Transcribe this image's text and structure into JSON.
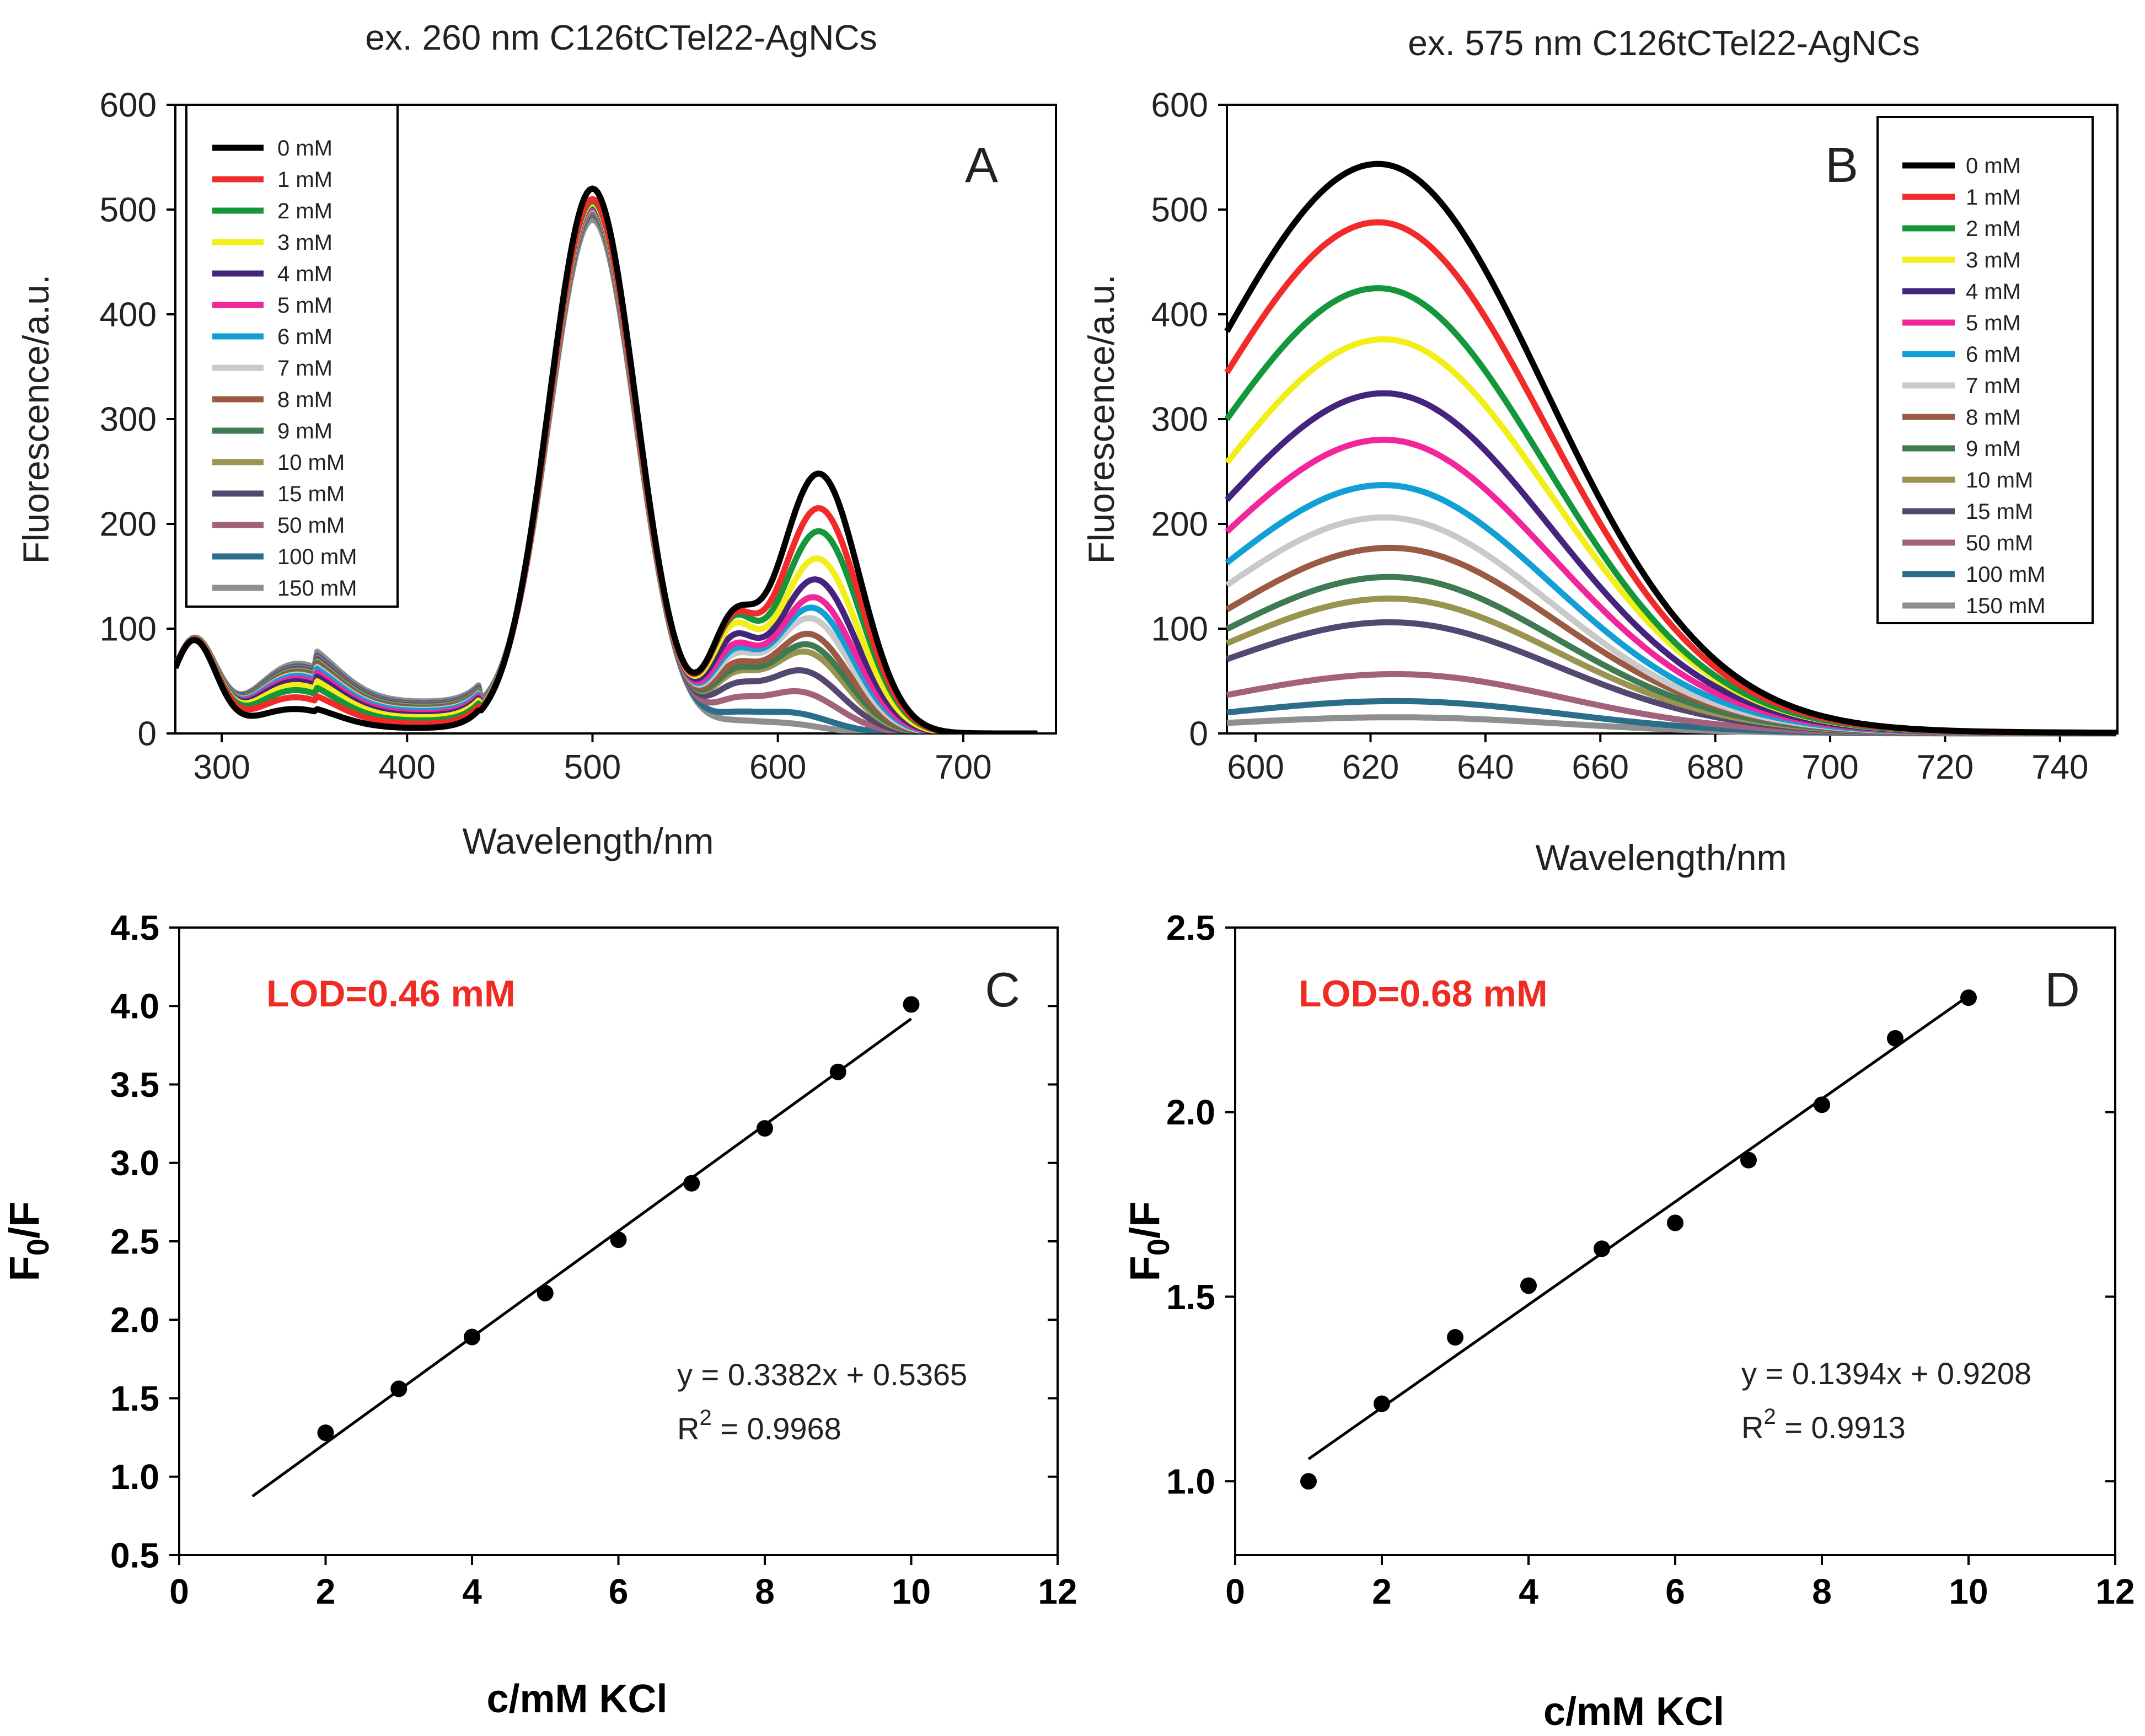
{
  "colors": {
    "series": [
      "#000000",
      "#f22a2a",
      "#14963a",
      "#f2ee17",
      "#45247d",
      "#f2269a",
      "#129fd6",
      "#c9c9c9",
      "#9a5a43",
      "#3e7a52",
      "#9a9450",
      "#544870",
      "#a2627a",
      "#2b6e8a",
      "#8f8f8f"
    ],
    "annotation": "#ee2c24"
  },
  "chart_data": [
    {
      "id": "A",
      "type": "line",
      "title": "ex. 260 nm C126tCTel22-AgNCs",
      "panel_label": "A",
      "xlabel": "Wavelength/nm",
      "ylabel": "Fluorescence/a.u.",
      "xlim": [
        275,
        750
      ],
      "ylim": [
        0,
        600
      ],
      "xticks": [
        300,
        400,
        500,
        600,
        700
      ],
      "yticks": [
        0,
        100,
        200,
        300,
        400,
        500,
        600
      ],
      "legend_position": "top-left",
      "series": [
        {
          "name": "0 mM",
          "peak1": 520,
          "peak2": 248,
          "peak2_center": 622,
          "shoulder": 22,
          "min_plateau": 5
        },
        {
          "name": "1 mM",
          "peak1": 510,
          "peak2": 215,
          "peak2_center": 622,
          "shoulder": 32,
          "min_plateau": 9
        },
        {
          "name": "2 mM",
          "peak1": 508,
          "peak2": 193,
          "peak2_center": 622,
          "shoulder": 38,
          "min_plateau": 12
        },
        {
          "name": "3 mM",
          "peak1": 506,
          "peak2": 167,
          "peak2_center": 621,
          "shoulder": 42,
          "min_plateau": 15
        },
        {
          "name": "4 mM",
          "peak1": 505,
          "peak2": 147,
          "peak2_center": 620,
          "shoulder": 45,
          "min_plateau": 17
        },
        {
          "name": "5 mM",
          "peak1": 503,
          "peak2": 130,
          "peak2_center": 619,
          "shoulder": 47,
          "min_plateau": 19
        },
        {
          "name": "6 mM",
          "peak1": 502,
          "peak2": 120,
          "peak2_center": 618,
          "shoulder": 49,
          "min_plateau": 21
        },
        {
          "name": "7 mM",
          "peak1": 501,
          "peak2": 110,
          "peak2_center": 617,
          "shoulder": 50,
          "min_plateau": 22
        },
        {
          "name": "8 mM",
          "peak1": 500,
          "peak2": 95,
          "peak2_center": 616,
          "shoulder": 51,
          "min_plateau": 23
        },
        {
          "name": "9 mM",
          "peak1": 499,
          "peak2": 85,
          "peak2_center": 615,
          "shoulder": 52,
          "min_plateau": 24
        },
        {
          "name": "10 mM",
          "peak1": 498,
          "peak2": 78,
          "peak2_center": 614,
          "shoulder": 53,
          "min_plateau": 25
        },
        {
          "name": "15 mM",
          "peak1": 497,
          "peak2": 60,
          "peak2_center": 612,
          "shoulder": 54,
          "min_plateau": 26
        },
        {
          "name": "50 mM",
          "peak1": 496,
          "peak2": 40,
          "peak2_center": 610,
          "shoulder": 55,
          "min_plateau": 27
        },
        {
          "name": "100 mM",
          "peak1": 495,
          "peak2": 20,
          "peak2_center": 605,
          "shoulder": 56,
          "min_plateau": 28
        },
        {
          "name": "150 mM",
          "peak1": 490,
          "peak2": 10,
          "peak2_center": 600,
          "shoulder": 58,
          "min_plateau": 30
        }
      ]
    },
    {
      "id": "B",
      "type": "line",
      "title": "ex. 575 nm C126tCTel22-AgNCs",
      "panel_label": "B",
      "xlabel": "Wavelength/nm",
      "ylabel": "Fluorescence/a.u.",
      "xlim": [
        595,
        750
      ],
      "ylim": [
        0,
        600
      ],
      "xticks": [
        600,
        620,
        640,
        660,
        680,
        700,
        720,
        740
      ],
      "yticks": [
        0,
        100,
        200,
        300,
        400,
        500,
        600
      ],
      "legend_position": "top-right",
      "series": [
        {
          "name": "0 mM",
          "peak": 527,
          "center": 622
        },
        {
          "name": "1 mM",
          "peak": 473,
          "center": 622
        },
        {
          "name": "2 mM",
          "peak": 412,
          "center": 622
        },
        {
          "name": "3 mM",
          "peak": 365,
          "center": 623
        },
        {
          "name": "4 mM",
          "peak": 315,
          "center": 623
        },
        {
          "name": "5 mM",
          "peak": 272,
          "center": 623
        },
        {
          "name": "6 mM",
          "peak": 230,
          "center": 623
        },
        {
          "name": "7 mM",
          "peak": 200,
          "center": 623
        },
        {
          "name": "8 mM",
          "peak": 172,
          "center": 624
        },
        {
          "name": "9 mM",
          "peak": 145,
          "center": 624
        },
        {
          "name": "10 mM",
          "peak": 125,
          "center": 624
        },
        {
          "name": "15 mM",
          "peak": 103,
          "center": 624
        },
        {
          "name": "50 mM",
          "peak": 55,
          "center": 625
        },
        {
          "name": "100 mM",
          "peak": 30,
          "center": 625
        },
        {
          "name": "150 mM",
          "peak": 15,
          "center": 625
        }
      ]
    },
    {
      "id": "C",
      "type": "scatter",
      "panel_label": "C",
      "xlabel": "c/mM KCl",
      "ylabel": "F0/F",
      "ylabel_main": "F",
      "ylabel_sub": "0",
      "ylabel_tail": "/F",
      "xlim": [
        0,
        12
      ],
      "ylim": [
        0.5,
        4.5
      ],
      "xticks": [
        0,
        2,
        4,
        6,
        8,
        10,
        12
      ],
      "yticks": [
        0.5,
        1.0,
        1.5,
        2.0,
        2.5,
        3.0,
        3.5,
        4.0,
        4.5
      ],
      "x": [
        2,
        3,
        4,
        5,
        6,
        7,
        8,
        9,
        10
      ],
      "y": [
        1.28,
        1.56,
        1.89,
        2.17,
        2.51,
        2.87,
        3.22,
        3.58,
        4.01
      ],
      "fit": {
        "slope": 0.3382,
        "intercept": 0.5365,
        "x_range": [
          1,
          10
        ]
      },
      "lod_text": "LOD=0.46 mM",
      "equation_text": "y = 0.3382x + 0.5365",
      "r2_label": "R",
      "r2_exp": "2",
      "r2_value": " = 0.9968"
    },
    {
      "id": "D",
      "type": "scatter",
      "panel_label": "D",
      "xlabel": "c/mM KCl",
      "ylabel": "F0/F",
      "ylabel_main": "F",
      "ylabel_sub": "0",
      "ylabel_tail": "/F",
      "xlim": [
        0,
        12
      ],
      "ylim": [
        0.8,
        2.5
      ],
      "xticks": [
        0,
        2,
        4,
        6,
        8,
        10,
        12
      ],
      "yticks": [
        1.0,
        1.5,
        2.0,
        2.5
      ],
      "x": [
        1,
        2,
        3,
        4,
        5,
        6,
        7,
        8,
        9,
        10
      ],
      "y": [
        1.0,
        1.21,
        1.39,
        1.53,
        1.63,
        1.7,
        1.87,
        2.02,
        2.2,
        2.31
      ],
      "fit": {
        "slope": 0.1394,
        "intercept": 0.9208,
        "x_range": [
          1,
          10
        ]
      },
      "lod_text": "LOD=0.68 mM",
      "equation_text": "y = 0.1394x + 0.9208",
      "r2_label": "R",
      "r2_exp": "2",
      "r2_value": " = 0.9913"
    }
  ]
}
